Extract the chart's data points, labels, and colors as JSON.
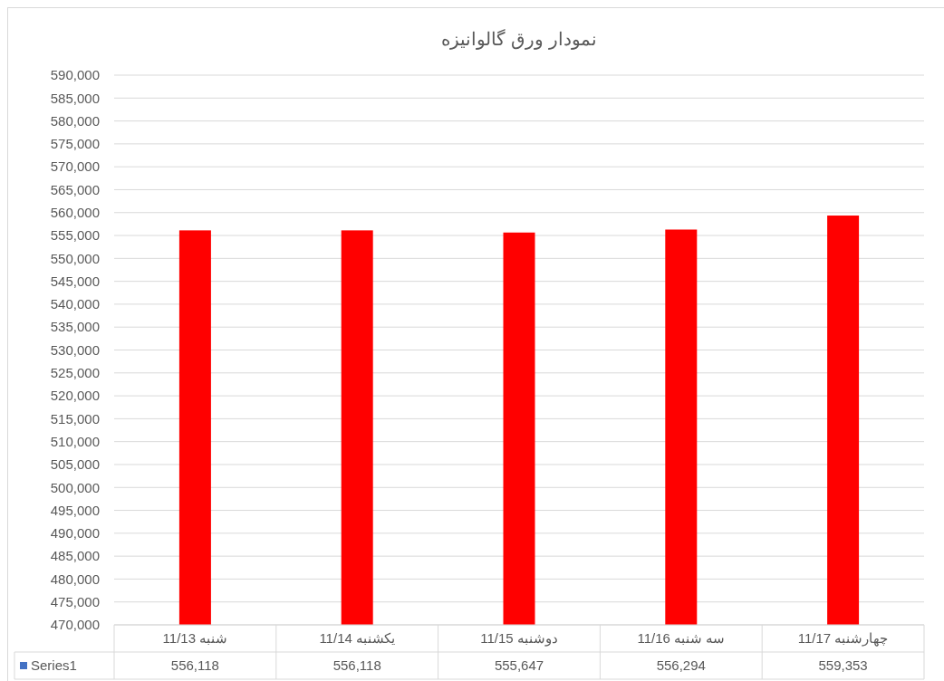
{
  "chart_data": {
    "type": "bar",
    "title": "نمودار ورق گالوانیزه",
    "categories": [
      "شنبه 11/13",
      "یکشنبه 11/14",
      "دوشنبه 11/15",
      "سه شنبه 11/16",
      "چهارشنبه 11/17"
    ],
    "series": [
      {
        "name": "Series1",
        "color": "#ff0000",
        "values": [
          556118,
          556118,
          555647,
          556294,
          559353
        ],
        "value_labels": [
          "556,118",
          "556,118",
          "555,647",
          "556,294",
          "559,353"
        ]
      }
    ],
    "ylim": [
      470000,
      590000
    ],
    "yticks": [
      {
        "value": 470000,
        "label": "470,000"
      },
      {
        "value": 475000,
        "label": "475,000"
      },
      {
        "value": 480000,
        "label": "480,000"
      },
      {
        "value": 485000,
        "label": "485,000"
      },
      {
        "value": 490000,
        "label": "490,000"
      },
      {
        "value": 495000,
        "label": "495,000"
      },
      {
        "value": 500000,
        "label": "500,000"
      },
      {
        "value": 505000,
        "label": "505,000"
      },
      {
        "value": 510000,
        "label": "510,000"
      },
      {
        "value": 515000,
        "label": "515,000"
      },
      {
        "value": 520000,
        "label": "520,000"
      },
      {
        "value": 525000,
        "label": "525,000"
      },
      {
        "value": 530000,
        "label": "530,000"
      },
      {
        "value": 535000,
        "label": "535,000"
      },
      {
        "value": 540000,
        "label": "540,000"
      },
      {
        "value": 545000,
        "label": "545,000"
      },
      {
        "value": 550000,
        "label": "550,000"
      },
      {
        "value": 555000,
        "label": "555,000"
      },
      {
        "value": 560000,
        "label": "560,000"
      },
      {
        "value": 565000,
        "label": "565,000"
      },
      {
        "value": 570000,
        "label": "570,000"
      },
      {
        "value": 575000,
        "label": "575,000"
      },
      {
        "value": 580000,
        "label": "580,000"
      },
      {
        "value": 585000,
        "label": "585,000"
      },
      {
        "value": 590000,
        "label": "590,000"
      }
    ],
    "grid": "y",
    "legend": "bottom"
  }
}
